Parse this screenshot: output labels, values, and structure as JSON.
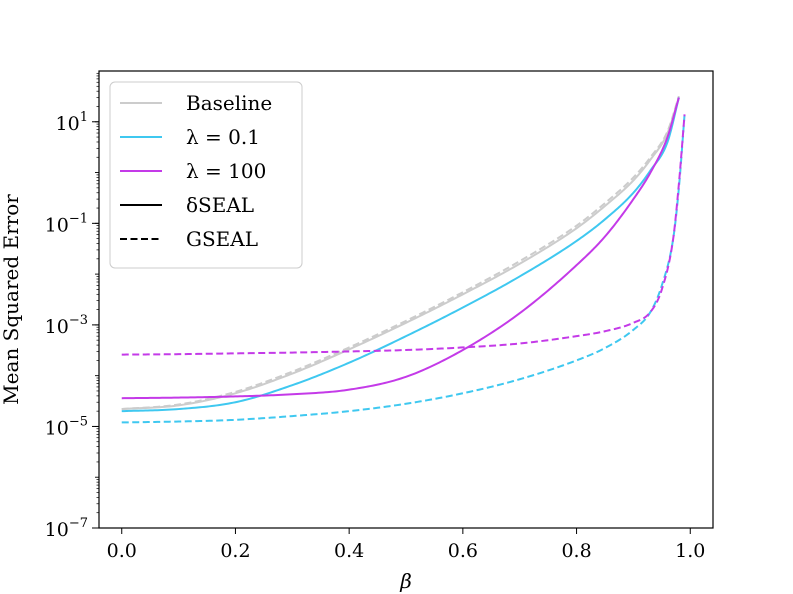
{
  "chart_data": {
    "type": "line",
    "title": "",
    "xlabel": "β",
    "ylabel": "Mean Squared Error",
    "yscale": "log",
    "xlim": [
      -0.04,
      1.04
    ],
    "ylim": [
      1e-07,
      100
    ],
    "x_ticks": [
      0.0,
      0.2,
      0.4,
      0.6,
      0.8,
      1.0
    ],
    "x_tick_labels": [
      "0.0",
      "0.2",
      "0.4",
      "0.6",
      "0.8",
      "1.0"
    ],
    "y_ticks": [
      {
        "value": 1e-07,
        "base": "10",
        "exp": "−7"
      },
      {
        "value": 1e-05,
        "base": "10",
        "exp": "−5"
      },
      {
        "value": 0.001,
        "base": "10",
        "exp": "−3"
      },
      {
        "value": 0.1,
        "base": "10",
        "exp": "−1"
      },
      {
        "value": 10,
        "base": "10",
        "exp": "1"
      }
    ],
    "legend": {
      "position": "top-left",
      "entries": [
        {
          "label": "Baseline",
          "color": "#cccccc",
          "dash": "solid"
        },
        {
          "label": "λ = 0.1",
          "color": "#3fc8f0",
          "dash": "solid"
        },
        {
          "label": "λ = 100",
          "color": "#c43ae8",
          "dash": "solid"
        },
        {
          "label": "δSEAL",
          "color": "#000000",
          "dash": "solid"
        },
        {
          "label": "GSEAL",
          "color": "#000000",
          "dash": "dashed"
        }
      ]
    },
    "series": [
      {
        "name": "Baseline δSEAL",
        "color": "#cccccc",
        "dash": "solid",
        "x": [
          0,
          0.1,
          0.2,
          0.3,
          0.4,
          0.5,
          0.6,
          0.7,
          0.8,
          0.85,
          0.9,
          0.93,
          0.96,
          0.98
        ],
        "y": [
          2.2e-05,
          2.6e-05,
          4.5e-05,
          0.00011,
          0.00033,
          0.0011,
          0.004,
          0.016,
          0.08,
          0.22,
          0.7,
          1.8,
          6,
          30
        ]
      },
      {
        "name": "Baseline GSEAL",
        "color": "#cccccc",
        "dash": "dashed",
        "x": [
          0,
          0.1,
          0.2,
          0.3,
          0.4,
          0.5,
          0.6,
          0.7,
          0.8,
          0.85,
          0.9,
          0.93,
          0.96,
          0.98
        ],
        "y": [
          2.2e-05,
          2.7e-05,
          4.8e-05,
          0.00012,
          0.00036,
          0.0012,
          0.0044,
          0.018,
          0.09,
          0.25,
          0.8,
          2,
          6.5,
          32
        ]
      },
      {
        "name": "λ = 0.1 δSEAL",
        "color": "#3fc8f0",
        "dash": "solid",
        "x": [
          0,
          0.1,
          0.2,
          0.3,
          0.4,
          0.5,
          0.6,
          0.7,
          0.8,
          0.85,
          0.9,
          0.93,
          0.96,
          0.98
        ],
        "y": [
          2e-05,
          2.2e-05,
          3e-05,
          6.5e-05,
          0.00018,
          0.0006,
          0.0022,
          0.009,
          0.045,
          0.12,
          0.4,
          1.1,
          4,
          30
        ]
      },
      {
        "name": "λ = 100 δSEAL",
        "color": "#c43ae8",
        "dash": "solid",
        "x": [
          0,
          0.1,
          0.2,
          0.3,
          0.4,
          0.5,
          0.6,
          0.7,
          0.8,
          0.85,
          0.9,
          0.93,
          0.96,
          0.98
        ],
        "y": [
          3.6e-05,
          3.7e-05,
          3.9e-05,
          4.3e-05,
          5.3e-05,
          9.5e-05,
          0.00032,
          0.0017,
          0.015,
          0.055,
          0.3,
          1,
          5,
          30
        ]
      },
      {
        "name": "λ = 0.1 GSEAL",
        "color": "#3fc8f0",
        "dash": "dashed",
        "x": [
          0,
          0.1,
          0.2,
          0.3,
          0.4,
          0.5,
          0.6,
          0.7,
          0.8,
          0.85,
          0.9,
          0.93,
          0.95,
          0.97,
          0.98,
          0.99
        ],
        "y": [
          1.2e-05,
          1.25e-05,
          1.35e-05,
          1.6e-05,
          2e-05,
          2.8e-05,
          4.5e-05,
          8.5e-05,
          0.0002,
          0.00035,
          0.0008,
          0.0018,
          0.006,
          0.05,
          0.5,
          14
        ]
      },
      {
        "name": "λ = 100 GSEAL",
        "color": "#c43ae8",
        "dash": "dashed",
        "x": [
          0,
          0.1,
          0.2,
          0.3,
          0.4,
          0.5,
          0.6,
          0.7,
          0.8,
          0.85,
          0.9,
          0.93,
          0.95,
          0.97,
          0.98,
          0.99
        ],
        "y": [
          0.00026,
          0.000265,
          0.000275,
          0.000285,
          0.0003,
          0.00032,
          0.00036,
          0.00043,
          0.0006,
          0.00075,
          0.0011,
          0.0018,
          0.005,
          0.05,
          0.6,
          14
        ]
      }
    ]
  }
}
